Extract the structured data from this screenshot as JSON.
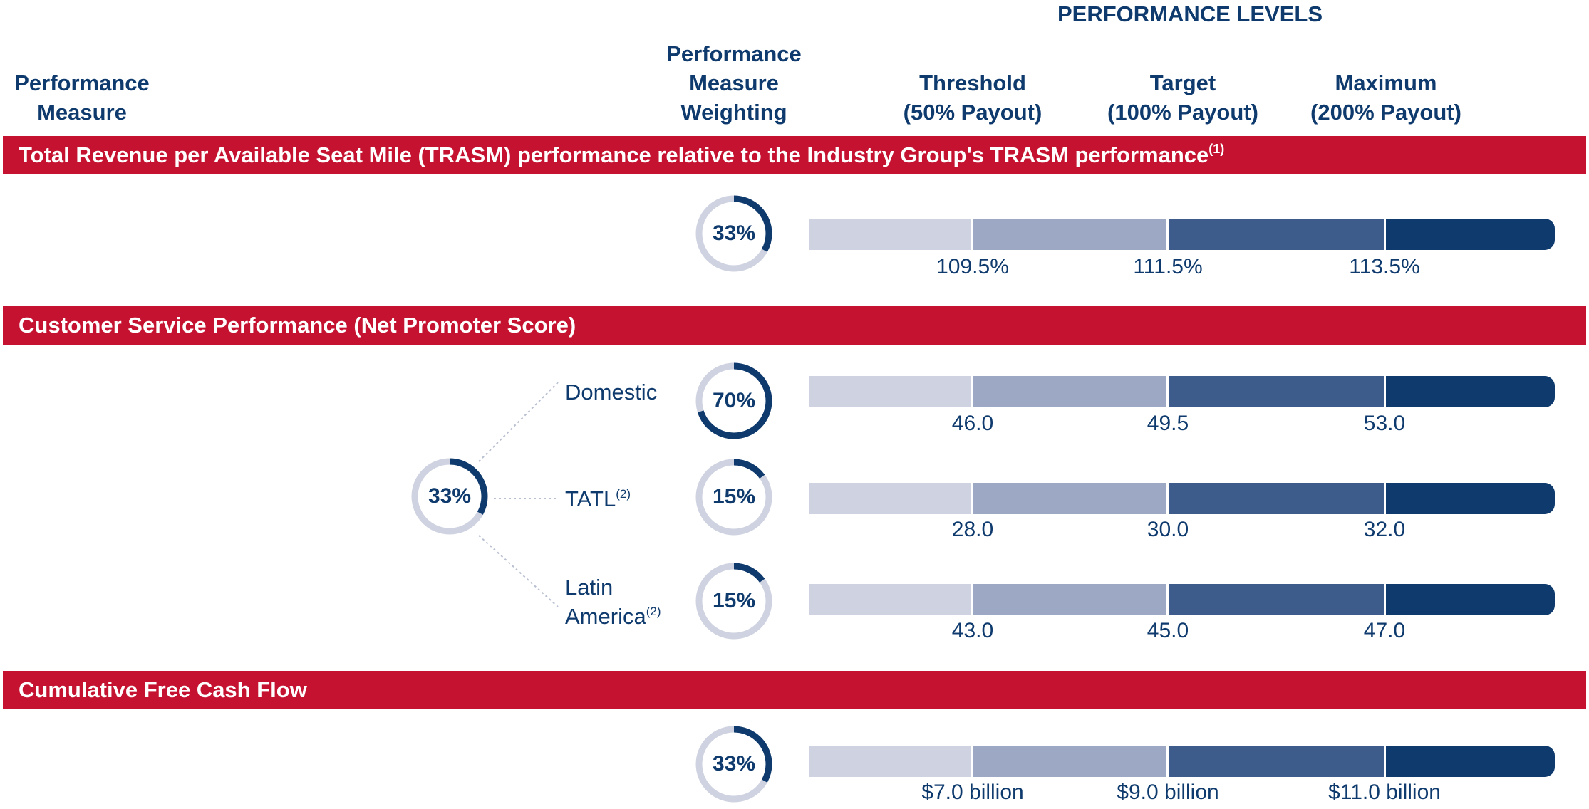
{
  "header": {
    "performance_levels": "PERFORMANCE LEVELS",
    "measure": [
      "Performance",
      "Measure"
    ],
    "weighting": [
      "Performance",
      "Measure",
      "Weighting"
    ],
    "threshold": [
      "Threshold",
      "(50% Payout)"
    ],
    "target": [
      "Target",
      "(100% Payout)"
    ],
    "maximum": [
      "Maximum",
      "(200% Payout)"
    ]
  },
  "sections": {
    "trasm": {
      "title": "Total Revenue per Available Seat Mile (TRASM) performance relative to the Industry Group's TRASM performance",
      "footnote": "(1)",
      "weight": "33%",
      "weight_value": 33,
      "threshold": "109.5%",
      "target": "111.5%",
      "maximum": "113.5%"
    },
    "nps": {
      "title": "Customer Service Performance (Net Promoter Score)",
      "weight": "33%",
      "weight_value": 33,
      "rows": [
        {
          "label": "Domestic",
          "footnote": "",
          "weight": "70%",
          "weight_value": 70,
          "threshold": "46.0",
          "target": "49.5",
          "maximum": "53.0"
        },
        {
          "label": "TATL",
          "footnote": "(2)",
          "weight": "15%",
          "weight_value": 15,
          "threshold": "28.0",
          "target": "30.0",
          "maximum": "32.0"
        },
        {
          "label_lines": [
            "Latin",
            "America"
          ],
          "footnote": "(2)",
          "weight": "15%",
          "weight_value": 15,
          "threshold": "43.0",
          "target": "45.0",
          "maximum": "47.0"
        }
      ]
    },
    "fcf": {
      "title": "Cumulative Free Cash Flow",
      "weight": "33%",
      "weight_value": 33,
      "threshold": "$7.0 billion",
      "target": "$9.0 billion",
      "maximum": "$11.0 billion"
    }
  },
  "colors": {
    "navy": "#0e3a6d",
    "red_band": "#c41230",
    "seg_light": "#cfd3e1",
    "seg_mid": "#9da9c4",
    "seg_dark": "#3d5c8c",
    "seg_darkest": "#0e3a6d",
    "ring_track": "#cfd3e1"
  }
}
